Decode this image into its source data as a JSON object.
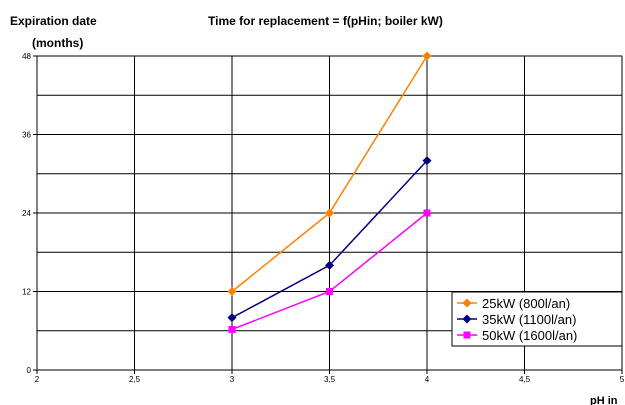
{
  "chart_data": {
    "type": "line",
    "title": "Time for replacement = f(pHin; boiler kW)",
    "ylabel_line1": "Expiration date",
    "ylabel_line2": "(months)",
    "xlabel": "pH in",
    "xlim": [
      2,
      5
    ],
    "ylim": [
      0,
      48
    ],
    "x_ticks": [
      "2",
      "2,5",
      "3",
      "3,5",
      "4",
      "4,5",
      "5"
    ],
    "y_ticks": [
      "0",
      "12",
      "24",
      "36",
      "48"
    ],
    "x_tick_values": [
      2,
      2.5,
      3,
      3.5,
      4,
      4.5,
      5
    ],
    "y_tick_values": [
      0,
      12,
      24,
      36,
      48
    ],
    "grid": true,
    "legend_position": "bottom-right",
    "series": [
      {
        "name": "25kW  (800l/an)",
        "color": "#ff8000",
        "marker": "diamond",
        "x": [
          3,
          3.5,
          4
        ],
        "y": [
          12,
          24,
          48
        ]
      },
      {
        "name": "35kW  (1100l/an)",
        "color": "#000080",
        "marker": "diamond",
        "x": [
          3,
          3.5,
          4
        ],
        "y": [
          8,
          16,
          32
        ]
      },
      {
        "name": "50kW  (1600l/an)",
        "color": "#ff00ff",
        "marker": "square",
        "x": [
          3,
          3.5,
          4
        ],
        "y": [
          6.2,
          12,
          24
        ]
      }
    ]
  }
}
